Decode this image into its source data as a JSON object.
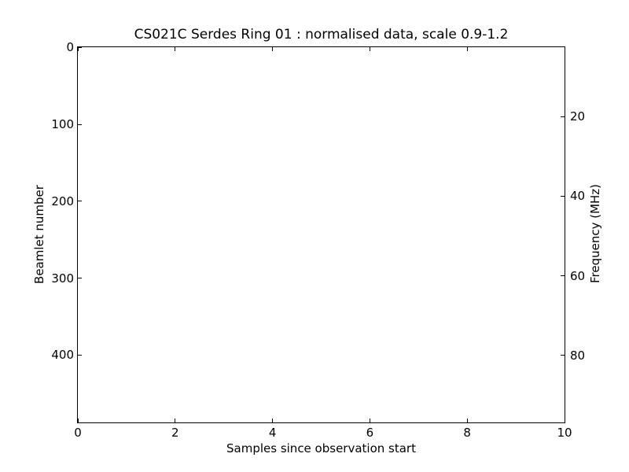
{
  "chart": {
    "title": "CS021C Serdes Ring 01 : normalised data, scale 0.9-1.2",
    "x_axis": {
      "label": "Samples since observation start",
      "min": 0,
      "max": 10,
      "ticks": [
        0,
        2,
        4,
        6,
        8,
        10
      ]
    },
    "y_left": {
      "label": "Beamlet number",
      "min": -0.5,
      "max": 487.5,
      "ticks": [
        0,
        100,
        200,
        300,
        400
      ]
    },
    "y_right": {
      "label": "Frequency (MHz)",
      "min": 2.5,
      "max": 96.9,
      "ticks": [
        20,
        40,
        60,
        80
      ]
    },
    "colors": {
      "foreground": "#000000",
      "background": "#ffffff"
    }
  },
  "chart_data": {
    "type": "heatmap",
    "title": "CS021C Serdes Ring 01 : normalised data, scale 0.9-1.2",
    "xlabel": "Samples since observation start",
    "ylabel_left": "Beamlet number",
    "ylabel_right": "Frequency (MHz)",
    "xlim": [
      0,
      10
    ],
    "ylim_beamlet_top_to_bottom": [
      0,
      487
    ],
    "ylim_frequency_mhz_top_to_bottom": [
      2.5,
      96.9
    ],
    "x_ticks": [
      0,
      2,
      4,
      6,
      8,
      10
    ],
    "y_ticks_beamlet": [
      0,
      100,
      200,
      300,
      400
    ],
    "y_ticks_frequency_mhz": [
      20,
      40,
      60,
      80
    ],
    "color_scale_range": [
      0.9,
      1.2
    ],
    "values": [],
    "grid": false,
    "legend": null,
    "tick_direction": "in"
  }
}
